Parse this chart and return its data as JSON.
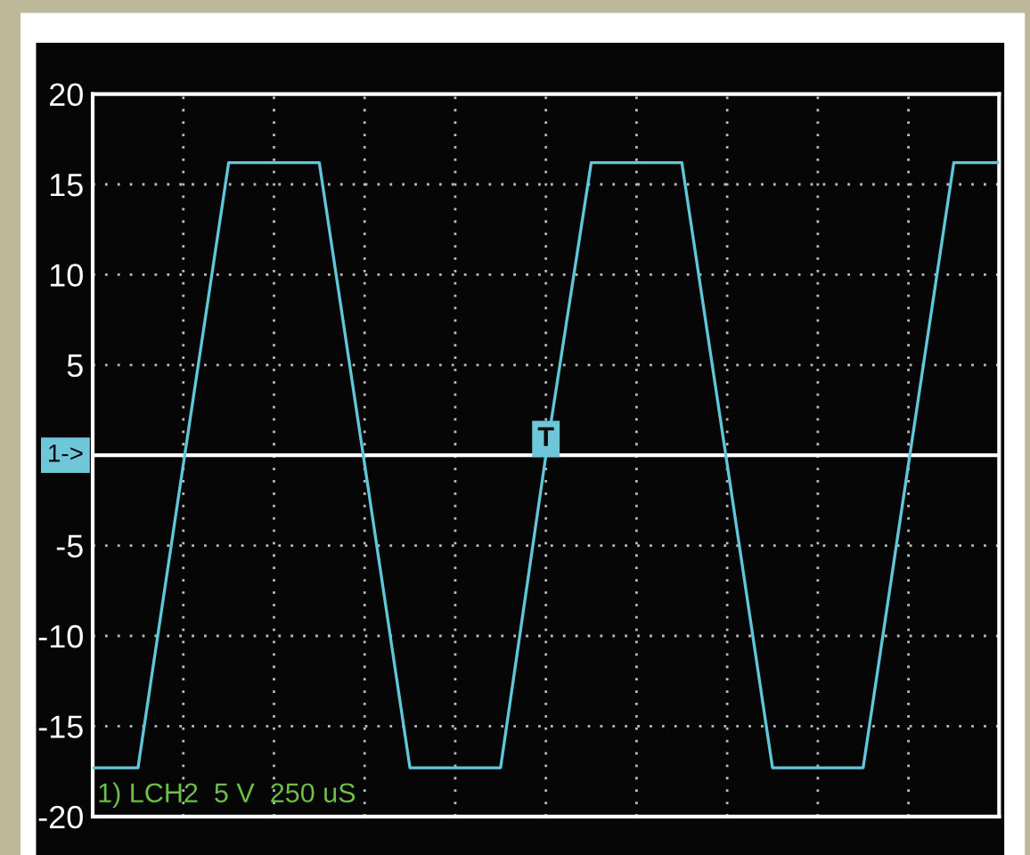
{
  "chart_data": {
    "type": "line",
    "categories": [
      null,
      null,
      null,
      null,
      null,
      null,
      null,
      null,
      null,
      null,
      null,
      null,
      null,
      null,
      null,
      null,
      null,
      null,
      null,
      null,
      null
    ],
    "series": [
      {
        "color": "#5fc8d8",
        "values": [
          -17.3,
          -17.3,
          -0.5,
          16.2,
          16.2,
          16.2,
          -0.5,
          -17.3,
          -17.3,
          -17.3,
          0,
          16.2,
          16.2,
          16.2,
          -0.5,
          -17.3,
          -17.3,
          -17.3,
          -0.5,
          16.2,
          16.2
        ]
      }
    ],
    "ylim": [
      -20,
      20
    ],
    "yticks": [
      -20,
      -15,
      -10,
      -5,
      {
        "value": 0,
        "label": null
      },
      5,
      10,
      15,
      20
    ],
    "tick_labels": "y",
    "grid": true,
    "line_style": "solid",
    "marker": "none",
    "ref_lines": [
      {
        "axis": "y",
        "value": 0,
        "label": null,
        "color": "#ffffff"
      }
    ],
    "annotations": [
      "T",
      {
        "text": "1->",
        "y": 0
      },
      "1) LCH2  5 V  250 uS"
    ]
  }
}
